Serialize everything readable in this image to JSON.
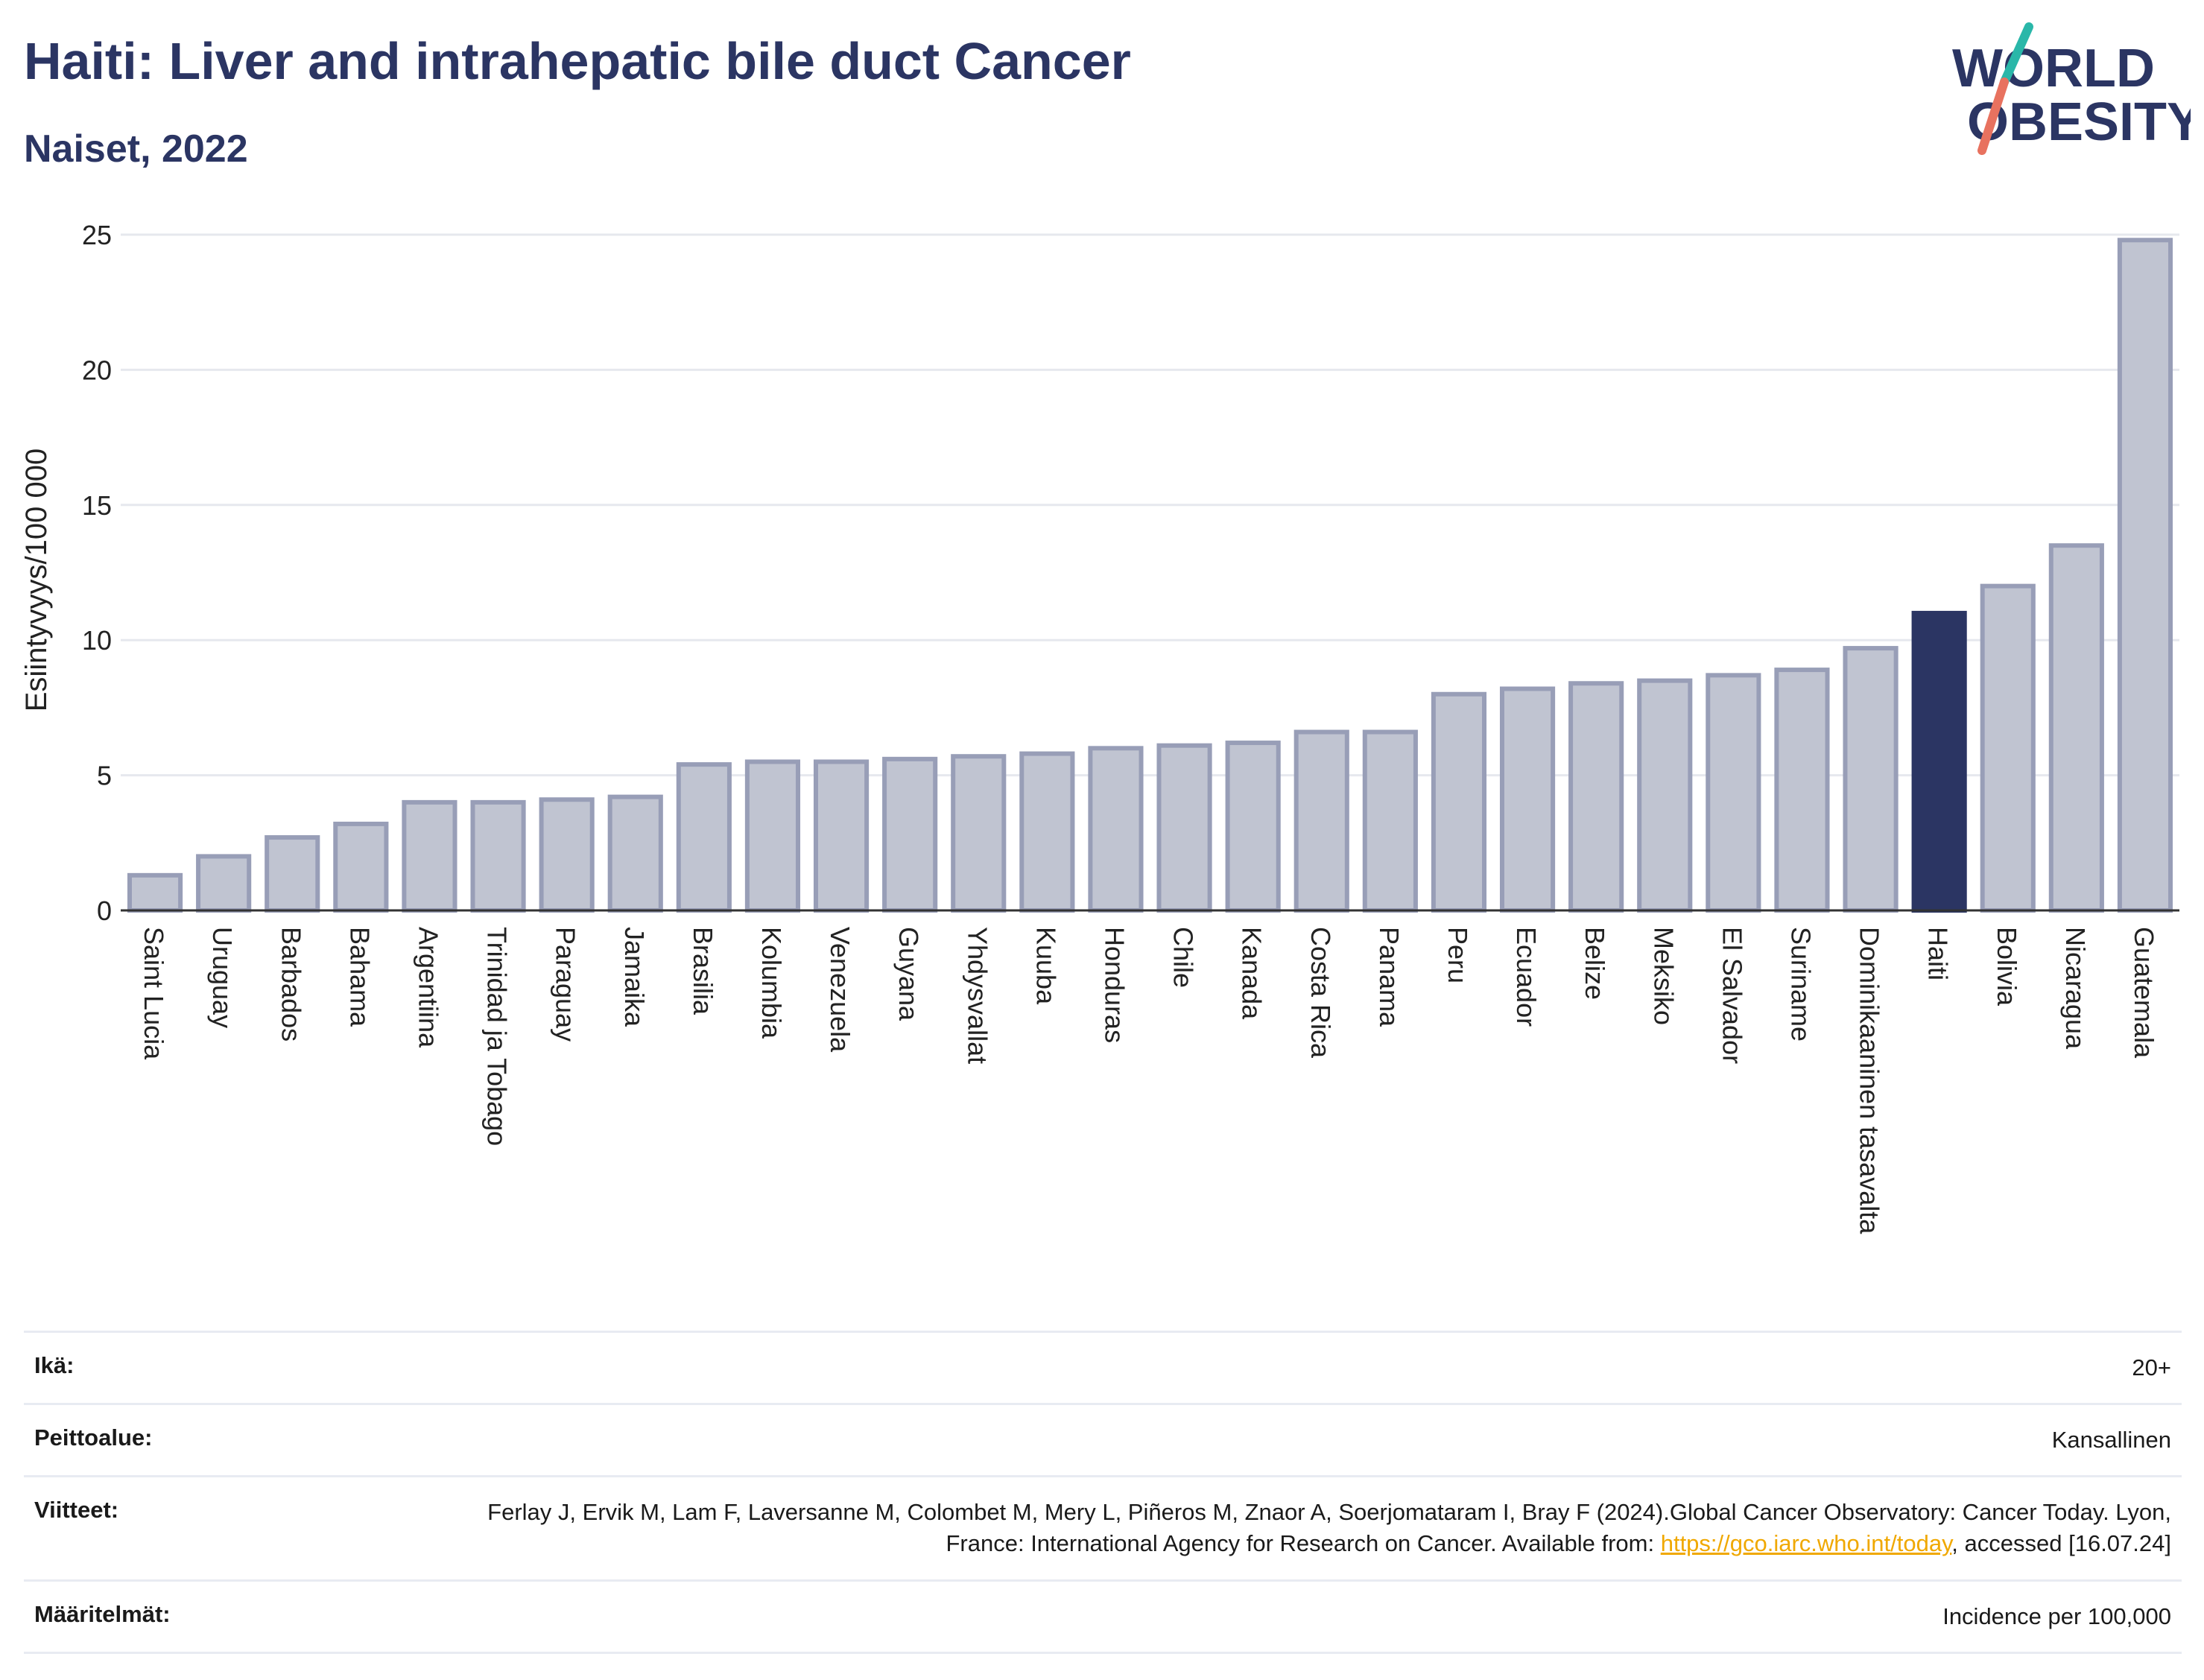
{
  "header": {
    "title": "Haiti: Liver and intrahepatic bile duct Cancer",
    "subtitle": "Naiset, 2022"
  },
  "logo": {
    "line1": "WORLD",
    "line2": "OBESITY",
    "colors": {
      "text": "#2b3563",
      "slash_top": "#2ab7a9",
      "slash_bottom": "#e8725f"
    }
  },
  "chart_data": {
    "type": "bar",
    "ylabel": "Esiintyvyys/100 000",
    "xlabel": "",
    "ylim": [
      0,
      25
    ],
    "yticks": [
      0,
      5,
      10,
      15,
      20,
      25
    ],
    "grid": true,
    "highlight": "Haiti",
    "colors": {
      "bar": "#c0c4d1",
      "bar_border": "#989eb7",
      "highlight": "#2b3563"
    },
    "categories": [
      "Saint Lucia",
      "Uruguay",
      "Barbados",
      "Bahama",
      "Argentiina",
      "Trinidad ja Tobago",
      "Paraguay",
      "Jamaika",
      "Brasilia",
      "Kolumbia",
      "Venezuela",
      "Guyana",
      "Yhdysvallat",
      "Kuuba",
      "Honduras",
      "Chile",
      "Kanada",
      "Costa Rica",
      "Panama",
      "Peru",
      "Ecuador",
      "Belize",
      "Meksiko",
      "El Salvador",
      "Suriname",
      "Dominikaaninen tasavalta",
      "Haiti",
      "Bolivia",
      "Nicaragua",
      "Guatemala"
    ],
    "values": [
      1.3,
      2.0,
      2.7,
      3.2,
      4.0,
      4.0,
      4.1,
      4.2,
      5.4,
      5.5,
      5.5,
      5.6,
      5.7,
      5.8,
      6.0,
      6.1,
      6.2,
      6.6,
      6.6,
      8.0,
      8.2,
      8.4,
      8.5,
      8.7,
      8.9,
      9.7,
      11.0,
      12.0,
      13.5,
      24.8
    ]
  },
  "info": {
    "age_label": "Ikä:",
    "age_value": "20+",
    "coverage_label": "Peittoalue:",
    "coverage_value": "Kansallinen",
    "refs_label": "Viitteet:",
    "refs_text_1": "Ferlay J, Ervik M, Lam F, Laversanne M, Colombet M, Mery L, Piñeros M, Znaor A, Soerjomataram I, Bray F (2024).Global Cancer Observatory: Cancer Today. Lyon, France: International Agency for Research on Cancer. Available from: ",
    "refs_link": "https://gco.iarc.who.int/today",
    "refs_text_2": ", accessed [16.07.24]",
    "defs_label": "Määritelmät:",
    "defs_value": "Incidence per 100,000"
  }
}
